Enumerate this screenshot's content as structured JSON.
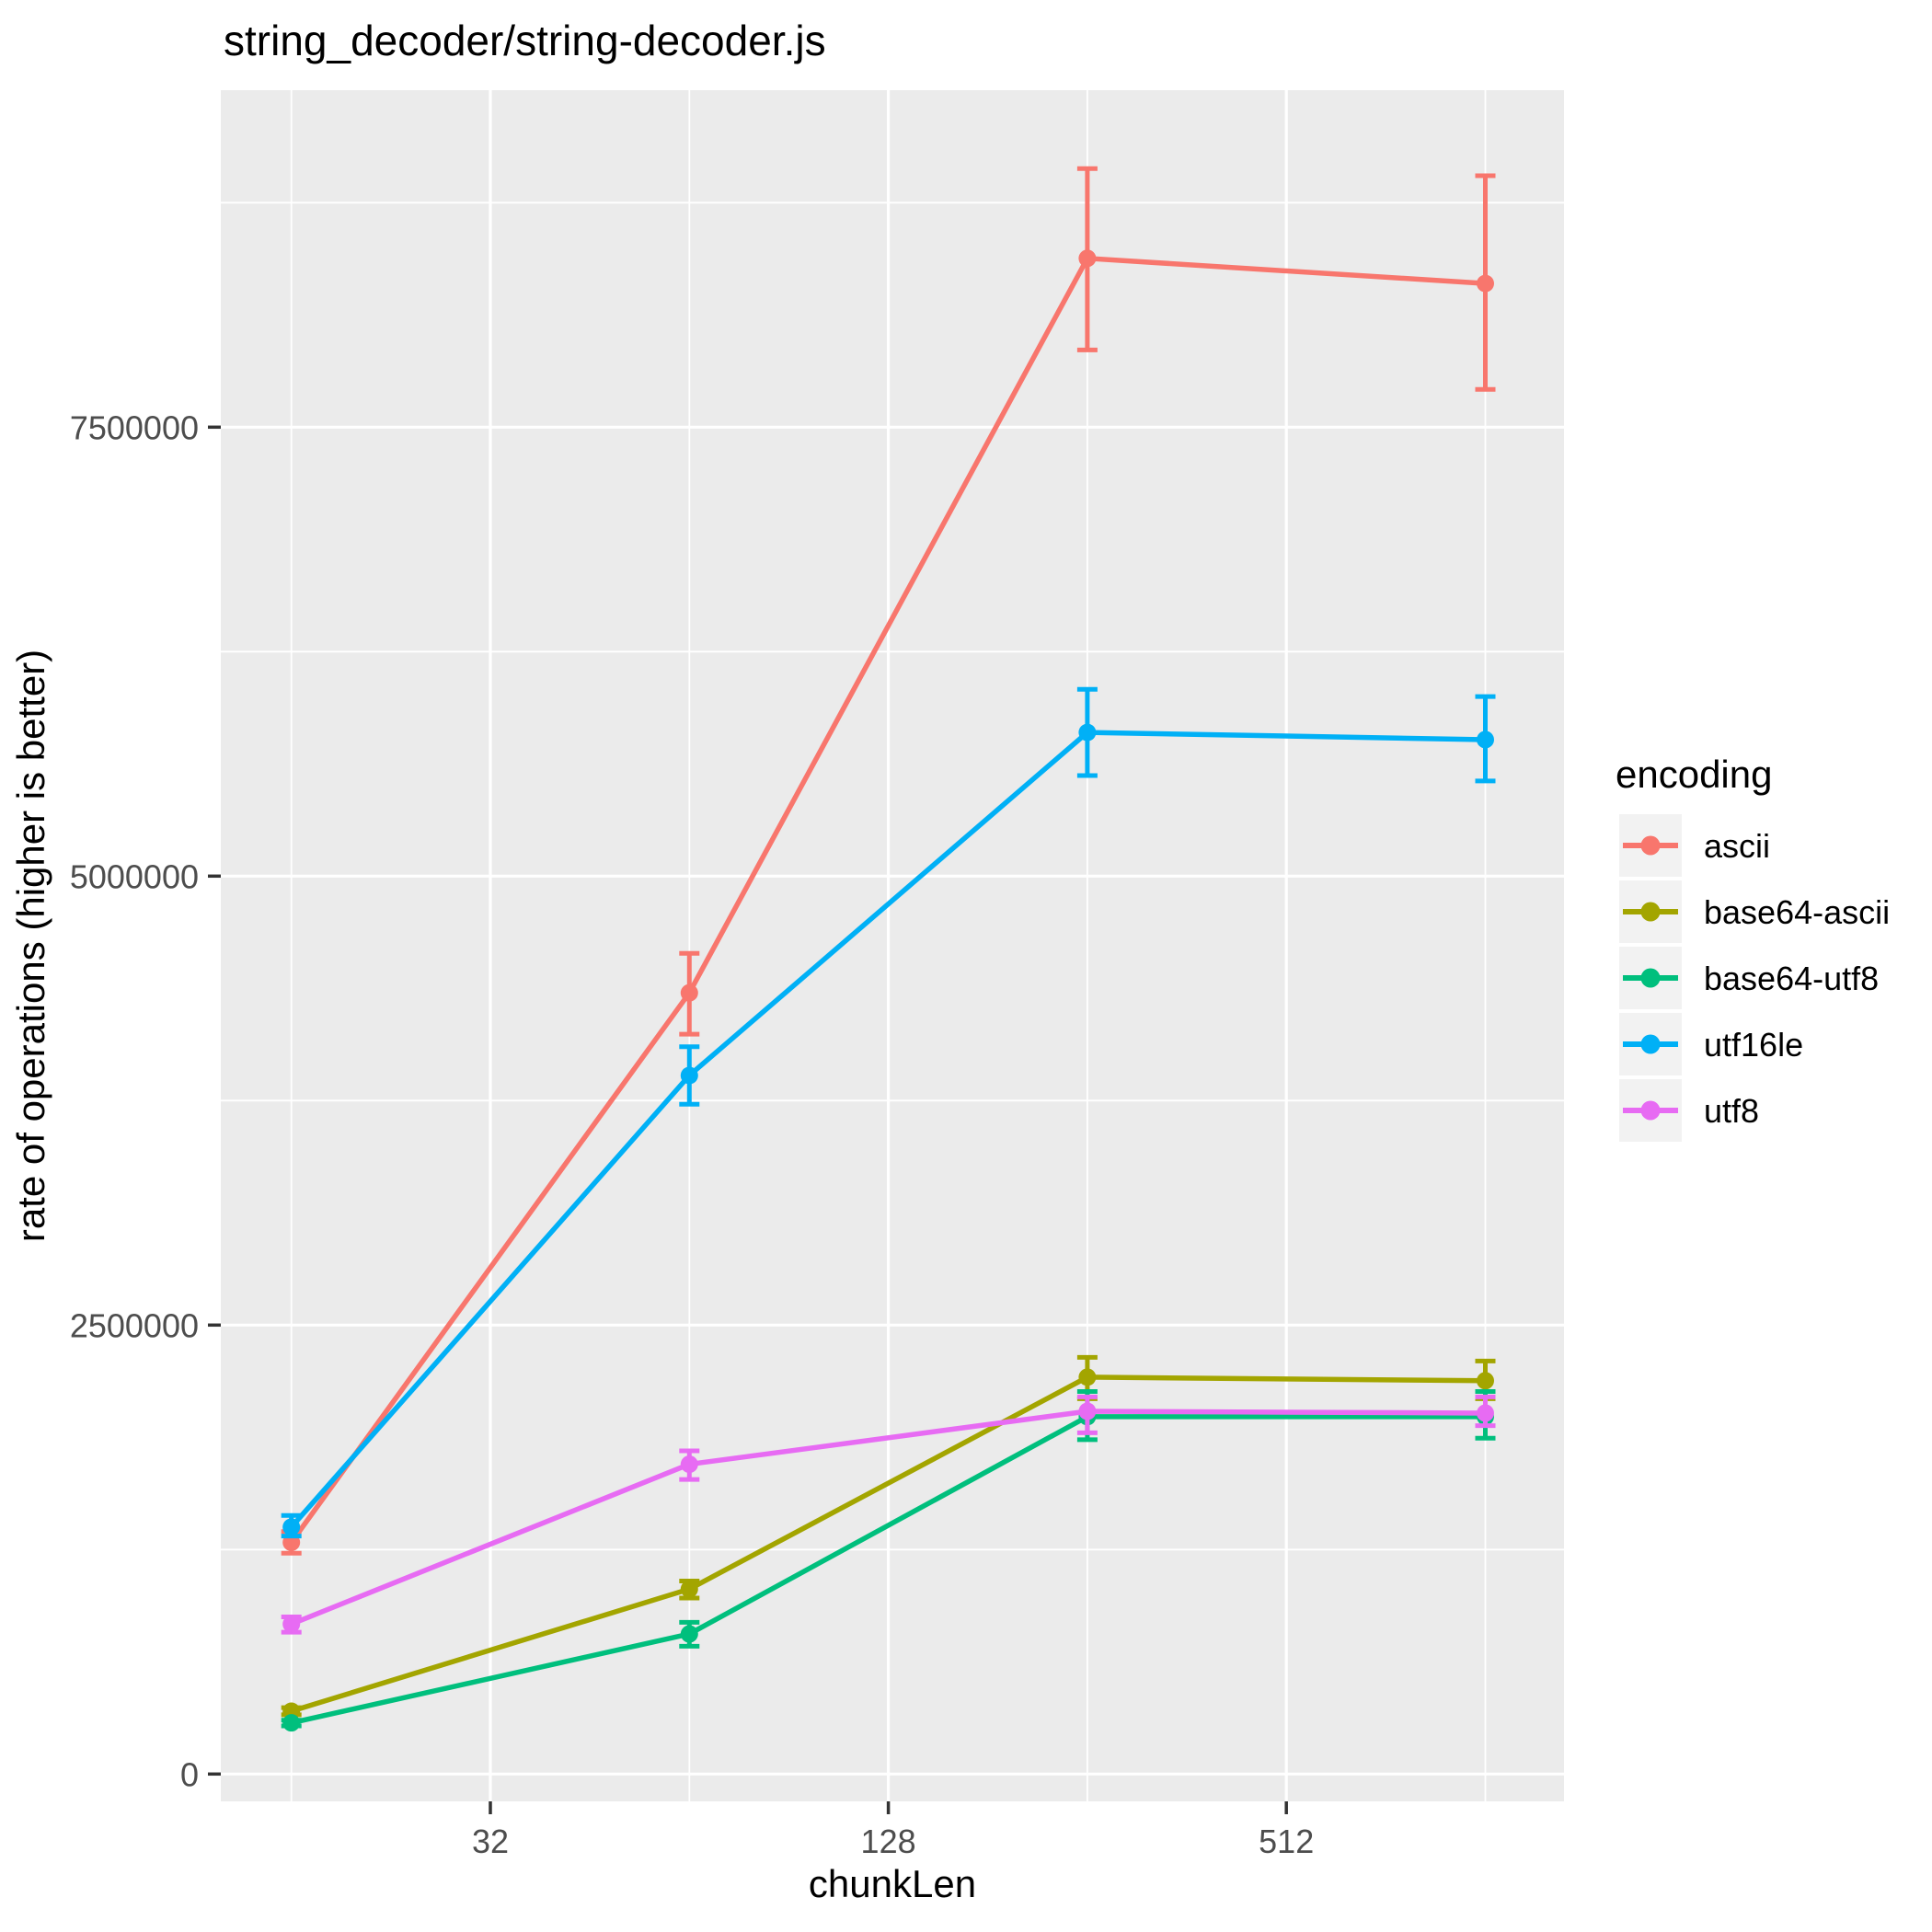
{
  "chart_data": {
    "type": "line",
    "title": "string_decoder/string-decoder.js",
    "xlabel": "chunkLen",
    "ylabel": "rate of operations (higher is better)",
    "legend_title": "encoding",
    "x_scale": "log2",
    "grid": true,
    "legend_position": "right",
    "panel_bg": "#EBEBEB",
    "grid_color": "#FFFFFF",
    "legend_key_bg": "#F2F2F2",
    "tick_color": "#333333",
    "tick_label_color": "#4D4D4D",
    "x": [
      16,
      64,
      256,
      1024
    ],
    "xaxis": {
      "ticks": [
        32,
        128,
        512
      ],
      "tick_labels": [
        "32",
        "128",
        "512"
      ],
      "minor_ticks": [
        16,
        64,
        256,
        1024
      ]
    },
    "yaxis": {
      "ticks": [
        0,
        2500000,
        5000000,
        7500000
      ],
      "tick_labels": [
        "0",
        "2500000",
        "5000000",
        "7500000"
      ],
      "minor_ticks": [
        1250000,
        3750000,
        6250000,
        8750000
      ],
      "range": [
        -150000,
        9380000
      ]
    },
    "series": [
      {
        "name": "ascii",
        "color": "#F8766D",
        "values": [
          1290000,
          4350000,
          8440000,
          8300000
        ],
        "err_low": [
          1230000,
          4120000,
          7930000,
          7710000
        ],
        "err_high": [
          1350000,
          4570000,
          8940000,
          8900000
        ]
      },
      {
        "name": "base64-ascii",
        "color": "#A3A500",
        "values": [
          350000,
          1030000,
          2210000,
          2190000
        ],
        "err_low": [
          330000,
          980000,
          2090000,
          2090000
        ],
        "err_high": [
          370000,
          1075000,
          2320000,
          2300000
        ]
      },
      {
        "name": "base64-utf8",
        "color": "#00BF7D",
        "values": [
          285000,
          780000,
          1990000,
          1990000
        ],
        "err_low": [
          268000,
          712000,
          1862000,
          1870000
        ],
        "err_high": [
          300000,
          845000,
          2130000,
          2130000
        ]
      },
      {
        "name": "utf16le",
        "color": "#00B0F6",
        "values": [
          1375000,
          3890000,
          5800000,
          5760000
        ],
        "err_low": [
          1325000,
          3730000,
          5560000,
          5530000
        ],
        "err_high": [
          1440000,
          4050000,
          6040000,
          6000000
        ]
      },
      {
        "name": "utf8",
        "color": "#E76BF3",
        "values": [
          835000,
          1725000,
          2020000,
          2010000
        ],
        "err_low": [
          790000,
          1640000,
          1900000,
          1940000
        ],
        "err_high": [
          875000,
          1800000,
          2100000,
          2100000
        ]
      }
    ]
  }
}
